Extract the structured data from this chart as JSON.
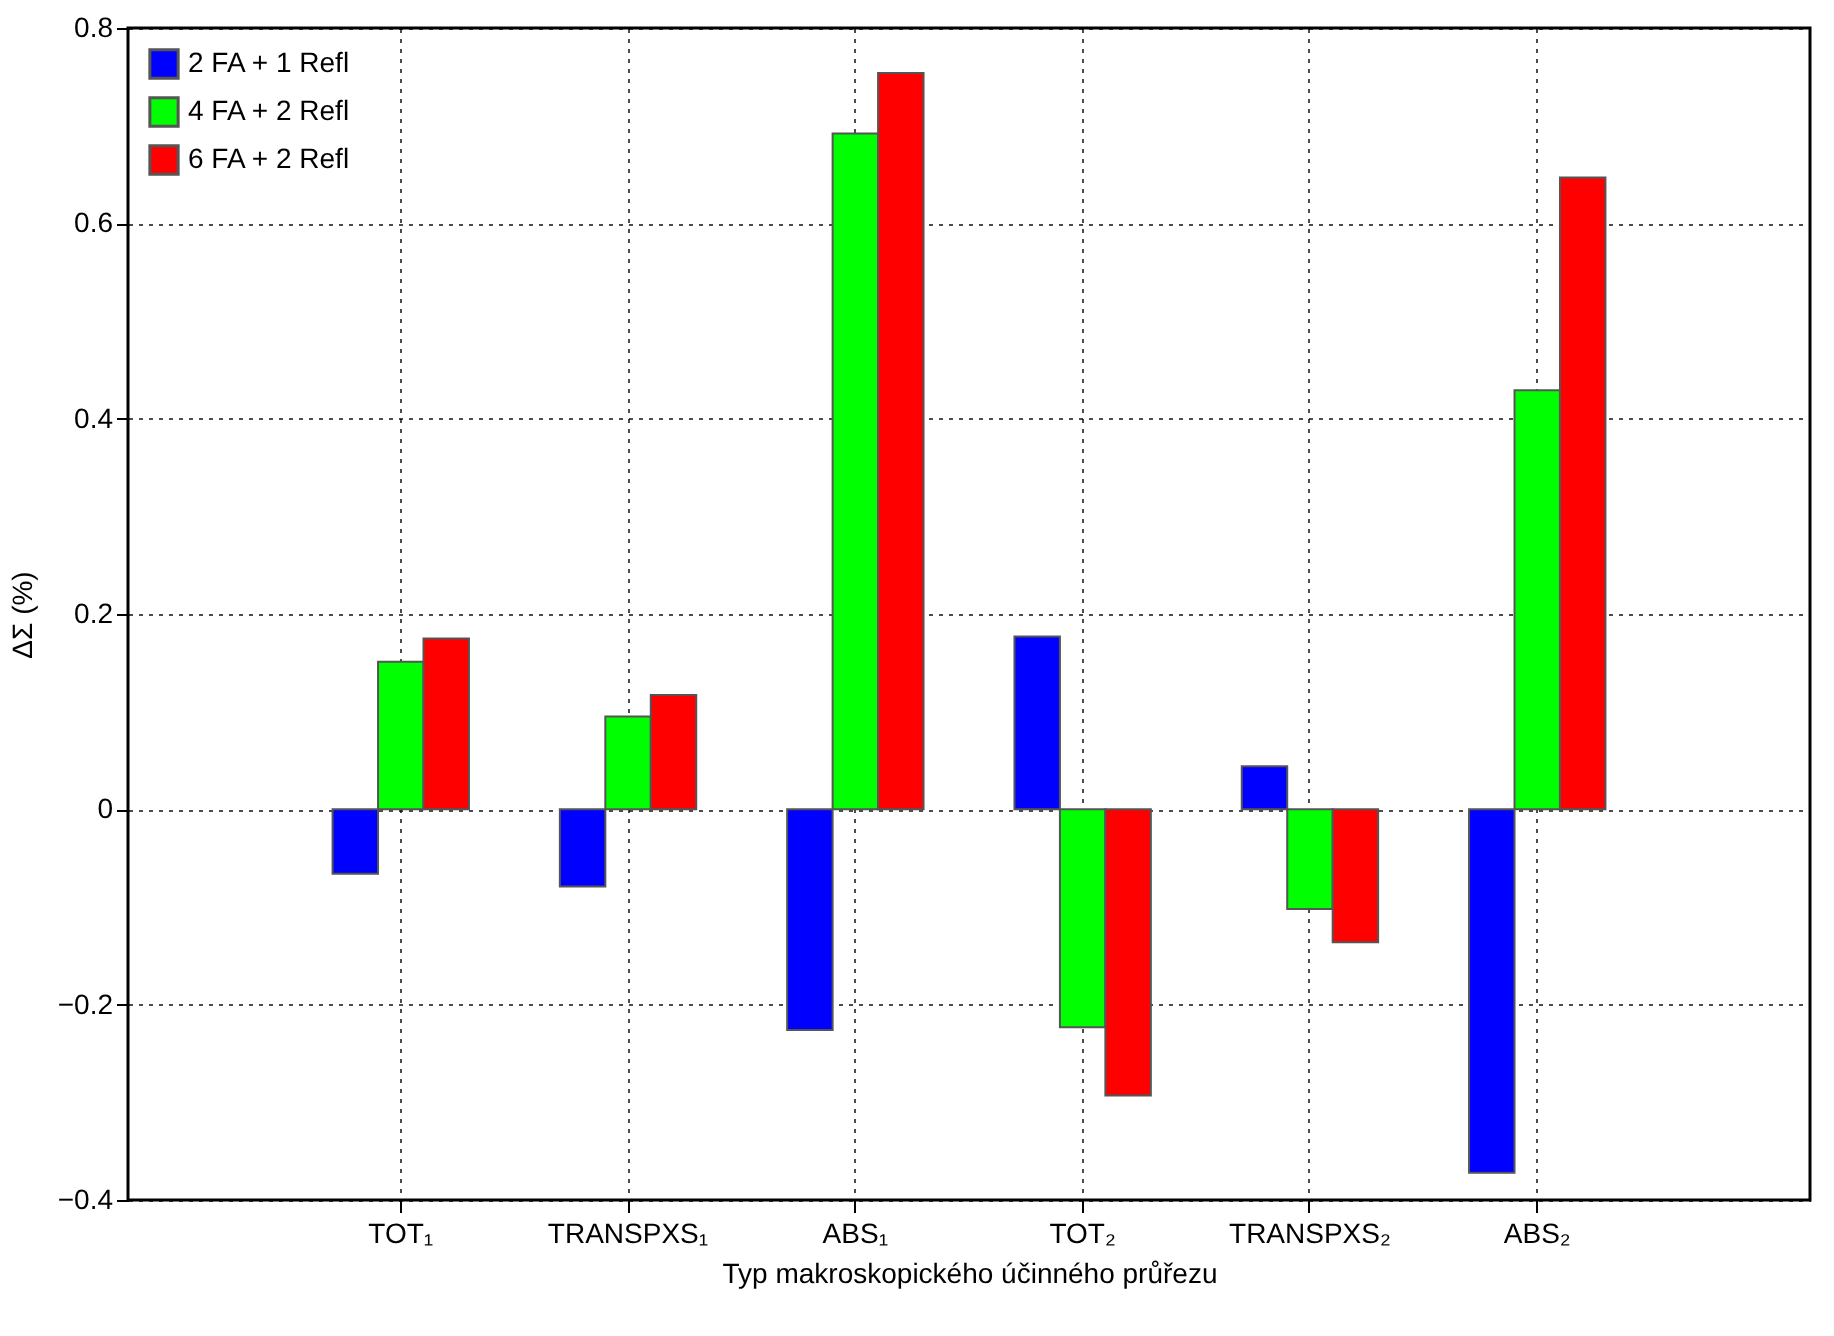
{
  "chart_data": {
    "type": "bar",
    "xlabel": "Typ makroskopického účinného průřezu",
    "ylabel": "ΔΣ (%)",
    "categories": [
      "TOT₁",
      "TRANSPXS₁",
      "ABS₁",
      "TOT₂",
      "TRANSPXS₂",
      "ABS₂"
    ],
    "series": [
      {
        "name": "2 FA + 1 Refl",
        "color": "#0000ff",
        "values": [
          -0.066,
          -0.079,
          -0.226,
          0.177,
          0.044,
          -0.372
        ]
      },
      {
        "name": "4 FA + 2 Refl",
        "color": "#00ff00",
        "values": [
          0.151,
          0.095,
          0.692,
          -0.223,
          -0.102,
          0.429
        ]
      },
      {
        "name": "6 FA + 2 Refl",
        "color": "#ff0000",
        "values": [
          0.175,
          0.117,
          0.754,
          -0.293,
          -0.136,
          0.647
        ]
      }
    ],
    "ylim": [
      -0.4,
      0.8
    ],
    "yticks": [
      -0.4,
      -0.2,
      0,
      0.2,
      0.4,
      0.6,
      0.8
    ],
    "grid": true,
    "legend": "top left"
  }
}
